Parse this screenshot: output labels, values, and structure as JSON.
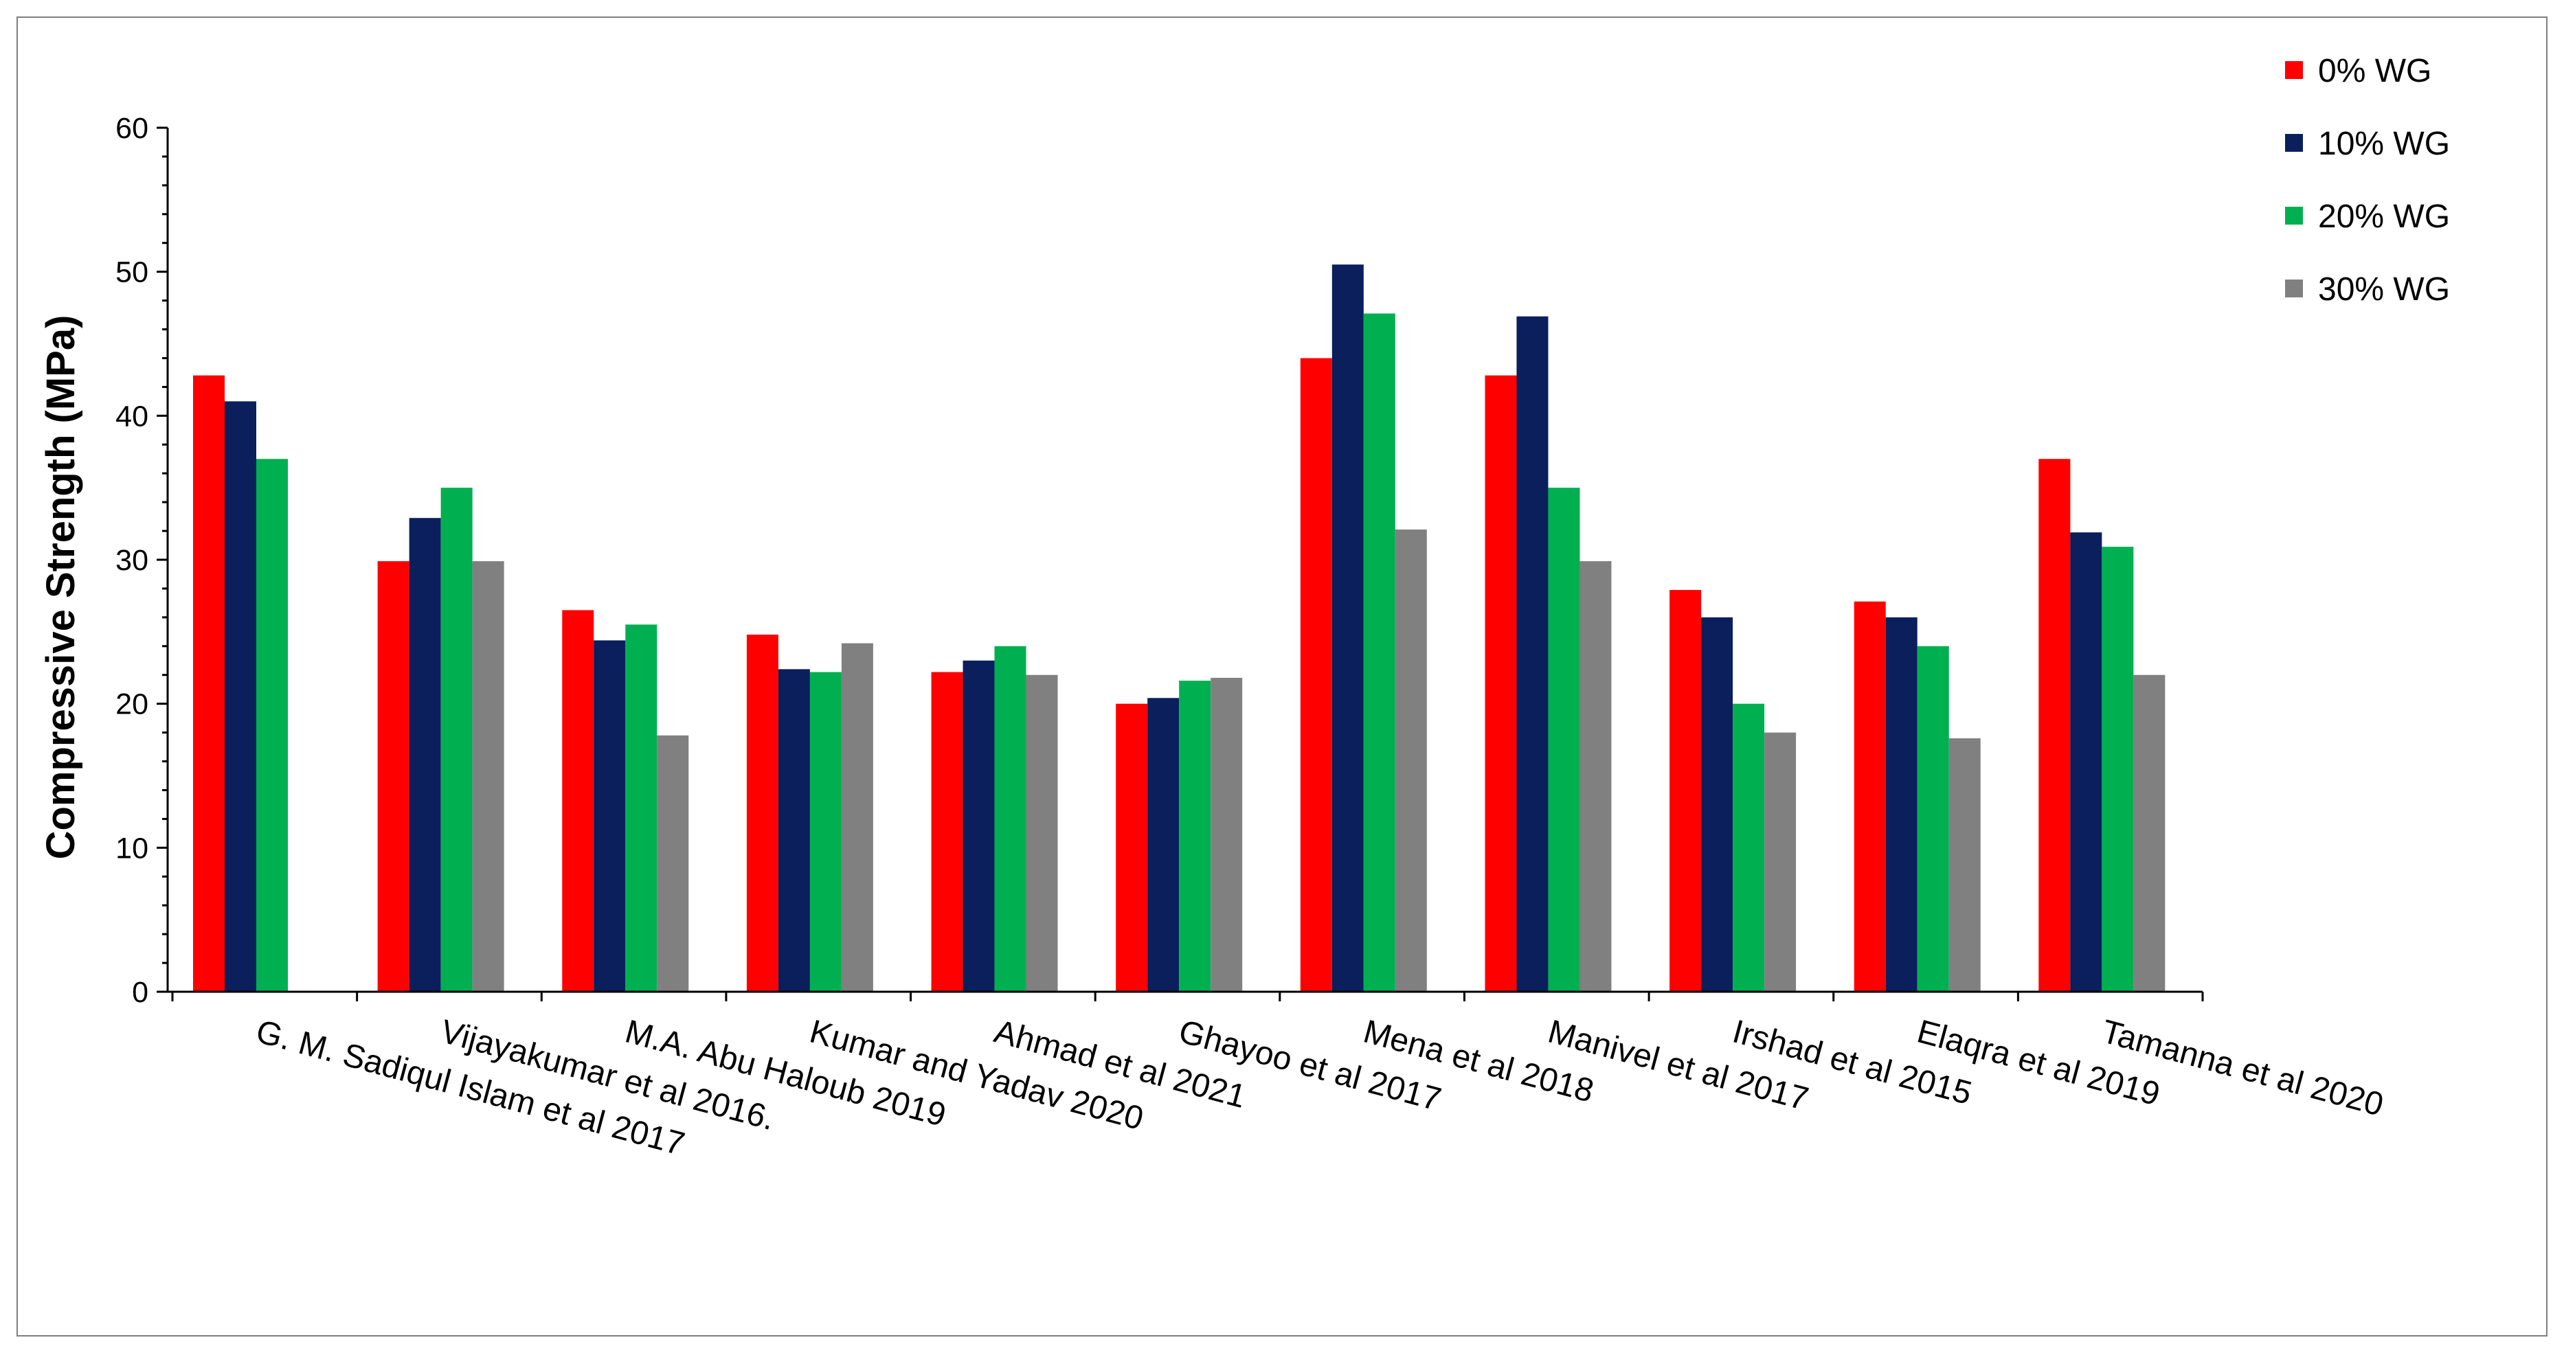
{
  "chart_data": {
    "type": "bar",
    "title": "",
    "xlabel": "",
    "ylabel": "Compressive Strength (MPa)",
    "ylim": [
      0,
      60
    ],
    "yticks": [
      0,
      10,
      20,
      30,
      40,
      50,
      60
    ],
    "grid": false,
    "legend_position": "top-right",
    "categories": [
      "G. M. Sadiqul Islam et al 2017",
      "Vijayakumar et al 2016.",
      "M.A. Abu Haloub 2019",
      "Kumar and Yadav 2020",
      "Ahmad et al 2021",
      "Ghayoo et al 2017",
      "Mena et al 2018",
      "Manivel et al 2017",
      "Irshad et al 2015",
      "Elaqra et al 2019",
      "Tamanna et al 2020"
    ],
    "series": [
      {
        "name": "0% WG",
        "color": "#ff0000",
        "values": [
          42.8,
          29.9,
          26.5,
          24.8,
          22.2,
          20.0,
          44.0,
          42.8,
          27.9,
          27.1,
          37.0
        ]
      },
      {
        "name": "10% WG",
        "color": "#0a1f5c",
        "values": [
          41.0,
          32.9,
          24.4,
          22.4,
          23.0,
          20.4,
          50.5,
          46.9,
          26.0,
          26.0,
          31.9
        ]
      },
      {
        "name": "20% WG",
        "color": "#00b050",
        "values": [
          37.0,
          35.0,
          25.5,
          22.2,
          24.0,
          21.6,
          47.1,
          35.0,
          20.0,
          24.0,
          30.9
        ]
      },
      {
        "name": "30% WG",
        "color": "#808080",
        "values": [
          null,
          29.9,
          17.8,
          24.2,
          22.0,
          21.8,
          32.1,
          29.9,
          18.0,
          17.6,
          22.0
        ]
      }
    ]
  }
}
